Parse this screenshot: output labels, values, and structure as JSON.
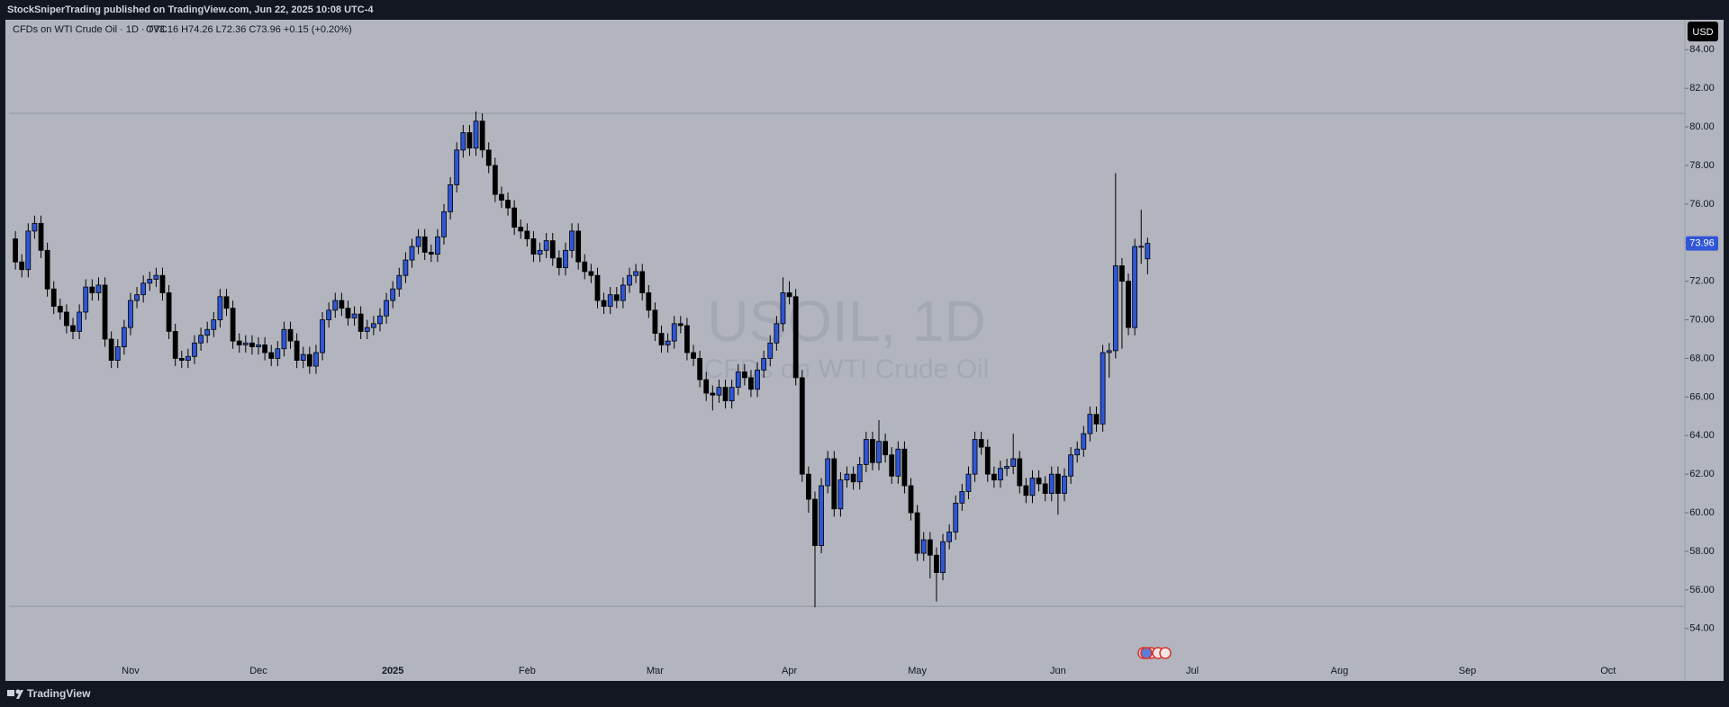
{
  "header": {
    "publisher": "StockSniperTrading published on TradingView.com, Jun 22, 2025 10:08 UTC-4"
  },
  "footer": {
    "brand": "TradingView"
  },
  "chart_data": {
    "type": "candlestick",
    "legend_text": "CFDs on WTI Crude Oil · 1D · TVC",
    "ohlc_text": "O73.16  H74.26  L72.36  C73.96  +0.15 (+0.20%)",
    "watermark_symbol": "USOIL, 1D",
    "watermark_name": "CFDs on WTI Crude Oil",
    "currency": "USD",
    "up_color": "#2f56d6",
    "down_color": "#000000",
    "background": "#b2b5be",
    "hlines": [
      80.7,
      55.15
    ],
    "xlim": [
      -1,
      261
    ],
    "xticks": [
      {
        "value": 18,
        "label": "Nov"
      },
      {
        "value": 38,
        "label": "Dec"
      },
      {
        "value": 59,
        "label": "2025"
      },
      {
        "value": 80,
        "label": "Feb"
      },
      {
        "value": 100,
        "label": "Mar"
      },
      {
        "value": 121,
        "label": "Apr"
      },
      {
        "value": 141,
        "label": "May"
      },
      {
        "value": 163,
        "label": "Jun"
      },
      {
        "value": 184,
        "label": "Jul"
      },
      {
        "value": 207,
        "label": "Aug"
      },
      {
        "value": 227,
        "label": "Sep"
      },
      {
        "value": 249,
        "label": "Oct"
      }
    ],
    "ylim": [
      52.45,
      85.55
    ],
    "yticks": [
      {
        "value": 54,
        "label": "54.00"
      },
      {
        "value": 56,
        "label": "56.00"
      },
      {
        "value": 58,
        "label": "58.00"
      },
      {
        "value": 60,
        "label": "60.00"
      },
      {
        "value": 62,
        "label": "62.00"
      },
      {
        "value": 64,
        "label": "64.00"
      },
      {
        "value": 66,
        "label": "66.00"
      },
      {
        "value": 68,
        "label": "68.00"
      },
      {
        "value": 70,
        "label": "70.00"
      },
      {
        "value": 72,
        "label": "72.00"
      },
      {
        "value": 74,
        "label": "74.00"
      },
      {
        "value": 76,
        "label": "76.00"
      },
      {
        "value": 78,
        "label": "78.00"
      },
      {
        "value": 80,
        "label": "80.00"
      },
      {
        "value": 82,
        "label": "82.00"
      },
      {
        "value": 84,
        "label": "84.00"
      }
    ],
    "series": [
      {
        "open": [
          74.2,
          73.0,
          72.6,
          74.6,
          75.0,
          73.6,
          71.6,
          70.7,
          70.4,
          69.7,
          69.4,
          70.4,
          71.7,
          71.4,
          71.8,
          69.0,
          67.9,
          68.6,
          69.6,
          71.0,
          71.3,
          71.9,
          72.1,
          72.3,
          71.4,
          69.4,
          68.0,
          67.9,
          68.1,
          68.8,
          69.2,
          69.5,
          70.0,
          71.2,
          70.6,
          68.9,
          68.7,
          68.8,
          68.6,
          68.7,
          68.3,
          68.0,
          68.5,
          69.5,
          68.9,
          67.9,
          68.2,
          67.6,
          68.3,
          70.0,
          70.5,
          71.0,
          70.6,
          70.1,
          70.3,
          69.4,
          69.6,
          69.8,
          70.2,
          71.0,
          71.6,
          72.3,
          73.1,
          73.8,
          74.3,
          73.5,
          73.4,
          74.3,
          75.6,
          77.0,
          78.8,
          79.7,
          78.9,
          80.3,
          78.8,
          78.0,
          76.5,
          76.2,
          75.8,
          74.8,
          74.6,
          74.2,
          73.4,
          73.6,
          74.1,
          73.2,
          72.7,
          73.6,
          74.6,
          73.0,
          72.5,
          72.3,
          71.0,
          70.7,
          71.3,
          71.0,
          71.8,
          72.3,
          72.5,
          71.4,
          70.5,
          69.3,
          68.7,
          68.9,
          69.8,
          69.7,
          68.3,
          68.0,
          66.9,
          66.2,
          66.1,
          66.5,
          65.8,
          66.5,
          67.3,
          67.0,
          66.4,
          67.4,
          68.0,
          68.8,
          69.8,
          71.4,
          71.2,
          67.0,
          62.0,
          60.7,
          58.3,
          61.4,
          62.8,
          60.2,
          61.7,
          62.0,
          61.6,
          62.5,
          63.8,
          62.6,
          63.7,
          63.0,
          61.9,
          63.3,
          61.4,
          60.0,
          57.9,
          58.6,
          57.8,
          56.9,
          58.5,
          59.0,
          60.5,
          61.1,
          62.0,
          63.8,
          63.4,
          62.0,
          61.7,
          62.3,
          62.4,
          62.8,
          61.4,
          60.9,
          61.8,
          61.5,
          61.0,
          62.0,
          61.0,
          61.9,
          63.0,
          63.3,
          64.1,
          65.1,
          64.6,
          68.3,
          68.4,
          72.8,
          72.0,
          69.6,
          73.8,
          73.16
        ],
        "high": [
          74.6,
          73.4,
          75.0,
          75.4,
          75.4,
          74.0,
          72.0,
          71.1,
          70.8,
          70.1,
          70.8,
          72.1,
          72.1,
          72.2,
          72.2,
          69.4,
          69.0,
          70.0,
          71.4,
          71.7,
          72.3,
          72.5,
          72.7,
          72.7,
          71.8,
          69.8,
          68.4,
          68.5,
          69.2,
          69.6,
          69.9,
          70.4,
          71.6,
          71.6,
          71.0,
          69.3,
          69.2,
          69.2,
          69.1,
          69.1,
          68.7,
          68.9,
          69.9,
          69.9,
          69.3,
          68.6,
          68.6,
          68.7,
          70.4,
          70.9,
          71.4,
          71.4,
          71.0,
          70.7,
          70.7,
          70.0,
          70.2,
          70.6,
          71.4,
          72.0,
          72.7,
          73.5,
          74.2,
          74.7,
          74.7,
          73.9,
          74.7,
          76.0,
          77.4,
          79.2,
          80.1,
          80.1,
          80.8,
          80.7,
          79.2,
          78.4,
          76.9,
          76.6,
          76.2,
          75.2,
          75.0,
          74.6,
          74.0,
          74.5,
          74.5,
          73.6,
          74.0,
          75.0,
          75.0,
          73.4,
          72.9,
          72.7,
          71.4,
          71.7,
          71.7,
          72.2,
          72.7,
          72.9,
          72.9,
          71.8,
          70.9,
          69.7,
          69.3,
          70.2,
          70.2,
          70.1,
          68.7,
          68.4,
          67.3,
          66.6,
          66.9,
          66.9,
          66.9,
          67.7,
          67.7,
          67.4,
          67.8,
          68.4,
          69.2,
          70.2,
          72.2,
          72.0,
          71.6,
          67.4,
          62.4,
          61.1,
          61.8,
          63.2,
          63.2,
          62.1,
          62.4,
          62.4,
          62.9,
          64.2,
          64.2,
          64.8,
          64.1,
          63.4,
          63.7,
          63.7,
          61.8,
          60.4,
          59.0,
          59.0,
          58.2,
          58.9,
          59.4,
          60.9,
          61.5,
          62.4,
          64.2,
          64.2,
          63.8,
          62.4,
          62.7,
          62.8,
          64.1,
          63.2,
          61.8,
          62.2,
          62.2,
          61.9,
          62.4,
          62.4,
          62.3,
          63.4,
          63.7,
          64.5,
          65.5,
          65.5,
          68.7,
          68.8,
          77.6,
          73.2,
          72.4,
          74.2,
          75.7,
          74.26
        ],
        "low": [
          72.6,
          72.2,
          72.2,
          74.2,
          73.2,
          71.2,
          70.3,
          70.0,
          69.3,
          69.0,
          69.0,
          70.0,
          71.0,
          71.0,
          68.6,
          67.5,
          67.5,
          68.2,
          69.2,
          70.6,
          70.9,
          71.5,
          71.7,
          71.0,
          69.0,
          67.6,
          67.5,
          67.5,
          67.7,
          68.4,
          68.8,
          69.1,
          69.6,
          70.2,
          68.5,
          68.3,
          68.3,
          68.2,
          68.2,
          67.9,
          67.6,
          67.6,
          68.1,
          68.5,
          67.5,
          67.5,
          67.2,
          67.2,
          67.9,
          69.6,
          70.1,
          70.2,
          69.7,
          69.7,
          69.0,
          69.0,
          69.2,
          69.4,
          69.8,
          70.6,
          71.2,
          71.9,
          72.7,
          73.4,
          73.1,
          73.0,
          73.0,
          73.9,
          75.2,
          76.6,
          78.4,
          78.5,
          78.5,
          78.4,
          77.6,
          76.1,
          75.8,
          75.4,
          74.4,
          74.2,
          73.8,
          73.0,
          73.0,
          73.2,
          72.8,
          72.3,
          72.3,
          73.2,
          72.6,
          72.1,
          71.9,
          70.6,
          70.3,
          70.3,
          70.6,
          70.6,
          71.4,
          71.9,
          71.0,
          70.1,
          68.9,
          68.3,
          68.3,
          68.5,
          69.3,
          67.9,
          67.6,
          66.5,
          65.8,
          65.3,
          65.7,
          65.4,
          65.4,
          66.1,
          66.6,
          66.0,
          66.0,
          67.0,
          67.6,
          68.4,
          69.4,
          70.8,
          66.6,
          61.6,
          60.0,
          55.1,
          57.9,
          61.0,
          59.8,
          59.8,
          61.3,
          61.2,
          61.2,
          62.1,
          62.2,
          62.2,
          62.6,
          61.5,
          61.5,
          61.0,
          59.6,
          57.5,
          57.5,
          56.6,
          55.4,
          56.5,
          58.1,
          58.6,
          60.1,
          60.7,
          61.6,
          63.0,
          61.6,
          61.3,
          61.3,
          61.9,
          62.0,
          61.0,
          60.5,
          60.5,
          61.1,
          60.6,
          60.6,
          59.9,
          60.6,
          61.5,
          62.6,
          62.9,
          63.7,
          64.2,
          64.2,
          67.0,
          68.0,
          68.5,
          69.2,
          69.2,
          72.9,
          72.36
        ],
        "close": [
          73.0,
          72.6,
          74.6,
          75.0,
          73.6,
          71.6,
          70.7,
          70.4,
          69.7,
          69.4,
          70.4,
          71.7,
          71.4,
          71.8,
          69.0,
          67.9,
          68.6,
          69.6,
          71.0,
          71.3,
          71.9,
          72.1,
          72.3,
          71.4,
          69.4,
          68.0,
          67.9,
          68.1,
          68.8,
          69.2,
          69.5,
          70.0,
          71.2,
          70.6,
          68.9,
          68.7,
          68.8,
          68.6,
          68.7,
          68.3,
          68.0,
          68.5,
          69.5,
          68.9,
          67.9,
          68.2,
          67.6,
          68.3,
          70.0,
          70.5,
          71.0,
          70.6,
          70.1,
          70.3,
          69.4,
          69.6,
          69.8,
          70.2,
          71.0,
          71.6,
          72.3,
          73.1,
          73.8,
          74.3,
          73.5,
          73.4,
          74.3,
          75.6,
          77.0,
          78.8,
          79.7,
          78.9,
          80.3,
          78.8,
          78.0,
          76.5,
          76.2,
          75.8,
          74.8,
          74.6,
          74.2,
          73.4,
          73.6,
          74.1,
          73.2,
          72.7,
          73.6,
          74.6,
          73.0,
          72.5,
          72.3,
          71.0,
          70.7,
          71.3,
          71.0,
          71.8,
          72.3,
          72.5,
          71.4,
          70.5,
          69.3,
          68.7,
          68.9,
          69.8,
          69.7,
          68.3,
          68.0,
          66.9,
          66.2,
          66.1,
          66.5,
          65.8,
          66.5,
          67.3,
          67.0,
          66.4,
          67.4,
          68.0,
          68.8,
          69.8,
          71.4,
          71.2,
          67.0,
          62.0,
          60.7,
          58.3,
          61.4,
          62.8,
          60.2,
          61.7,
          62.0,
          61.6,
          62.5,
          63.8,
          62.6,
          63.7,
          63.0,
          61.9,
          63.3,
          61.4,
          60.0,
          57.9,
          58.6,
          57.8,
          56.9,
          58.5,
          59.0,
          60.5,
          61.1,
          62.0,
          63.8,
          63.4,
          62.0,
          61.7,
          62.3,
          62.4,
          62.8,
          61.4,
          60.9,
          61.8,
          61.5,
          61.0,
          62.0,
          61.0,
          61.9,
          63.0,
          63.3,
          64.1,
          65.1,
          64.6,
          68.3,
          68.4,
          72.8,
          72.0,
          69.6,
          73.8,
          73.81,
          73.96
        ]
      }
    ]
  }
}
